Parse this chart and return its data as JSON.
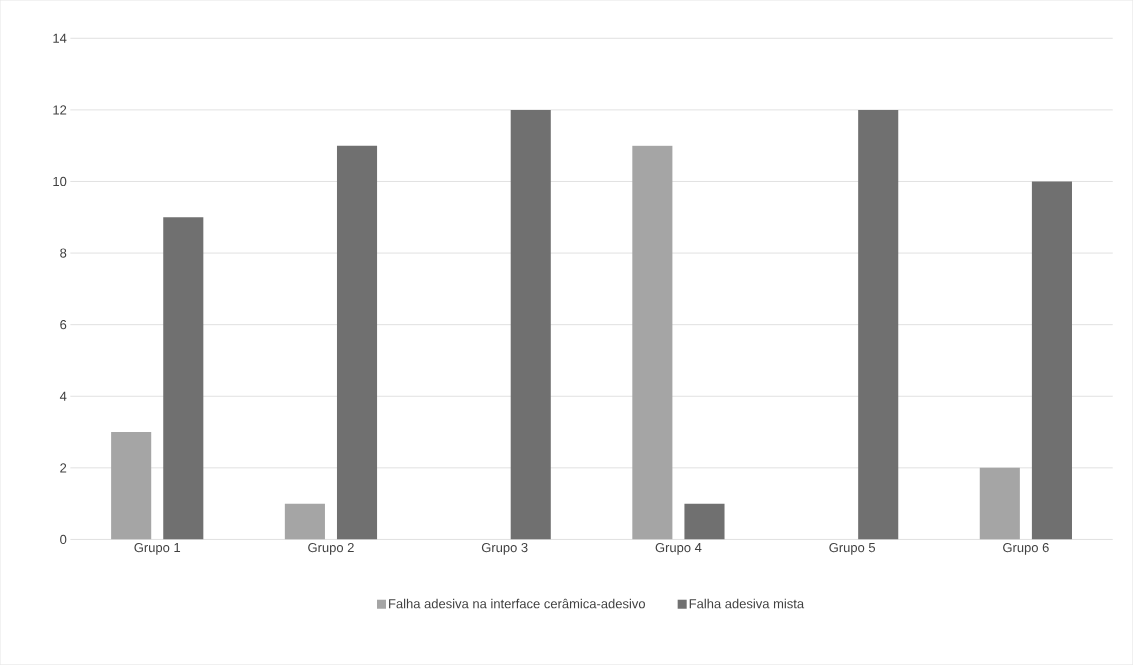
{
  "chart_data": {
    "type": "bar",
    "categories": [
      "Grupo 1",
      "Grupo 2",
      "Grupo 3",
      "Grupo 4",
      "Grupo 5",
      "Grupo 6"
    ],
    "series": [
      {
        "name": "Falha adesiva na interface cerâmica-adesivo",
        "color": "#a5a5a5",
        "values": [
          3,
          1,
          0,
          11,
          0,
          2
        ]
      },
      {
        "name": "Falha adesiva mista",
        "color": "#707070",
        "values": [
          9,
          11,
          12,
          1,
          12,
          10
        ]
      }
    ],
    "ylim": [
      0,
      14
    ],
    "yticks": [
      0,
      2,
      4,
      6,
      8,
      10,
      12,
      14
    ],
    "grid": "y",
    "legend": "bottom"
  }
}
